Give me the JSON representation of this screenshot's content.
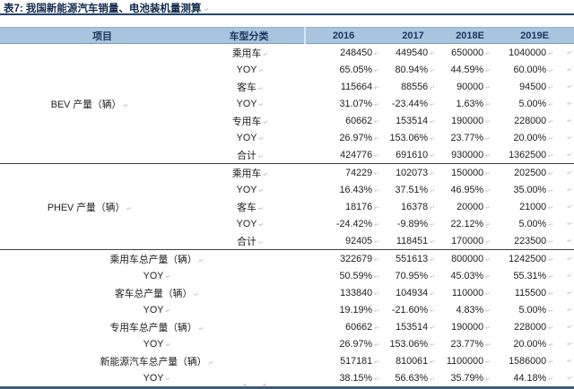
{
  "page": {
    "title": "表7: 我国新能源汽车销量、电池装机量测算"
  },
  "table": {
    "columns": [
      "项目",
      "车型分类",
      "2016",
      "2017",
      "2018E",
      "2019E"
    ],
    "sections": [
      {
        "label": "BEV 产量（辆）",
        "merged": false,
        "rows": [
          {
            "category": "乘用车",
            "values": [
              "248450",
              "449540",
              "650000",
              "1040000"
            ]
          },
          {
            "category": "YOY",
            "values": [
              "65.05%",
              "80.94%",
              "44.59%",
              "60.00%"
            ]
          },
          {
            "category": "客车",
            "values": [
              "115664",
              "88556",
              "90000",
              "94500"
            ]
          },
          {
            "category": "YOY",
            "values": [
              "31.07%",
              "-23.44%",
              "1.63%",
              "5.00%"
            ]
          },
          {
            "category": "专用车",
            "values": [
              "60662",
              "153514",
              "190000",
              "228000"
            ]
          },
          {
            "category": "YOY",
            "values": [
              "26.97%",
              "153.06%",
              "23.77%",
              "20.00%"
            ]
          },
          {
            "category": "合计",
            "values": [
              "424776",
              "691610",
              "930000",
              "1362500"
            ]
          }
        ]
      },
      {
        "label": "PHEV 产量（辆）",
        "merged": false,
        "rows": [
          {
            "category": "乘用车",
            "values": [
              "74229",
              "102073",
              "150000",
              "202500"
            ]
          },
          {
            "category": "YOY",
            "values": [
              "16.43%",
              "37.51%",
              "46.95%",
              "35.00%"
            ]
          },
          {
            "category": "客车",
            "values": [
              "18176",
              "16378",
              "20000",
              "21000"
            ]
          },
          {
            "category": "YOY",
            "values": [
              "-24.42%",
              "-9.89%",
              "22.12%",
              "5.00%"
            ]
          },
          {
            "category": "合计",
            "values": [
              "92405",
              "118451",
              "170000",
              "223500"
            ]
          }
        ]
      },
      {
        "label": "",
        "merged": true,
        "rows": [
          {
            "category": "乘用车总产量（辆）",
            "values": [
              "322679",
              "551613",
              "800000",
              "1242500"
            ]
          },
          {
            "category": "YOY",
            "values": [
              "50.59%",
              "70.95%",
              "45.03%",
              "55.31%"
            ]
          },
          {
            "category": "客车总产量（辆）",
            "values": [
              "133840",
              "104934",
              "110000",
              "115500"
            ]
          },
          {
            "category": "YOY",
            "values": [
              "19.19%",
              "-21.60%",
              "4.83%",
              "5.00%"
            ]
          },
          {
            "category": "专用车总产量（辆）",
            "values": [
              "60662",
              "153514",
              "190000",
              "228000"
            ]
          },
          {
            "category": "YOY",
            "values": [
              "26.97%",
              "153.06%",
              "23.77%",
              "20.00%"
            ]
          },
          {
            "category": "新能源汽车总产量（辆）",
            "values": [
              "517181",
              "810061",
              "1100000",
              "1586000"
            ]
          },
          {
            "category": "YOY",
            "values": [
              "38.15%",
              "56.63%",
              "35.79%",
              "44.18%"
            ]
          }
        ]
      }
    ]
  },
  "footer_marks": "+ +",
  "colors": {
    "header_bg": "#aac4e0",
    "header_text": "#17375e",
    "title_text": "#122a4d",
    "title_rule": "#25466e",
    "section_divider": "#3f3f3f",
    "table_bottom_rule": "#3d5a7d",
    "body_text": "#212121"
  }
}
